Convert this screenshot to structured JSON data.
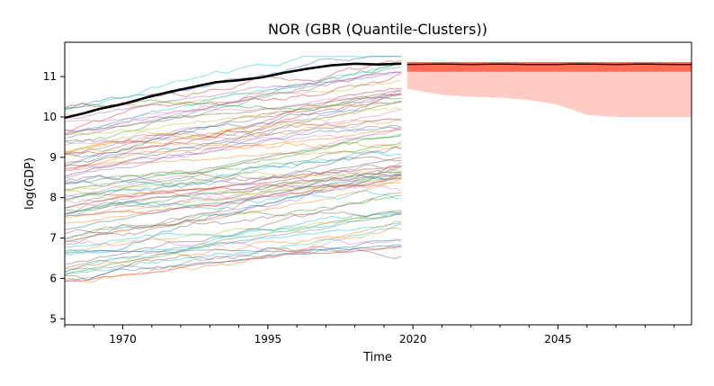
{
  "chart_data": {
    "type": "line",
    "title": "NOR (GBR (Quantile-Clusters))",
    "xlabel": "Time",
    "ylabel": "log(GDP)",
    "xlim": [
      1960,
      2068
    ],
    "ylim": [
      4.85,
      11.85
    ],
    "x_ticks": [
      1970,
      1995,
      2020,
      2045
    ],
    "y_ticks": [
      5,
      6,
      7,
      8,
      9,
      10,
      11
    ],
    "grid": false,
    "legend": "none",
    "highlight_series": {
      "color": "#000000",
      "x": [
        1960,
        1963,
        1966,
        1970,
        1974,
        1978,
        1982,
        1986,
        1990,
        1994,
        1998,
        2002,
        2006,
        2010,
        2014,
        2018
      ],
      "values": [
        9.98,
        10.08,
        10.2,
        10.32,
        10.48,
        10.62,
        10.74,
        10.86,
        10.91,
        10.98,
        11.1,
        11.2,
        11.28,
        11.32,
        11.3,
        11.32
      ]
    },
    "forecast": {
      "x": [
        2019,
        2025,
        2030,
        2035,
        2040,
        2045,
        2047,
        2050,
        2055,
        2060,
        2065,
        2068
      ],
      "median": [
        11.3,
        11.31,
        11.3,
        11.31,
        11.3,
        11.3,
        11.31,
        11.31,
        11.3,
        11.31,
        11.3,
        11.3
      ],
      "inner_lower": [
        11.12,
        11.12,
        11.12,
        11.12,
        11.12,
        11.12,
        11.12,
        11.12,
        11.12,
        11.12,
        11.12,
        11.12
      ],
      "inner_upper": [
        11.36,
        11.36,
        11.36,
        11.36,
        11.36,
        11.36,
        11.36,
        11.36,
        11.36,
        11.36,
        11.36,
        11.36
      ],
      "outer_lower": [
        10.7,
        10.55,
        10.5,
        10.48,
        10.42,
        10.3,
        10.2,
        10.05,
        10.0,
        10.0,
        10.0,
        10.0
      ],
      "outer_upper": [
        11.36,
        11.36,
        11.36,
        11.36,
        11.36,
        11.36,
        11.36,
        11.36,
        11.36,
        11.36,
        11.36,
        11.36
      ],
      "colors": {
        "median": "#000000",
        "inner": "#ff6b55",
        "outer": "#ffccc4"
      }
    },
    "background_series": {
      "x_start": 1960,
      "x_end": 2018,
      "count": 80,
      "start_range": [
        5.85,
        10.3
      ],
      "palette": [
        "#1f77b4",
        "#ff7f0e",
        "#2ca02c",
        "#d62728",
        "#9467bd",
        "#8c564b",
        "#e377c2",
        "#7f7f7f",
        "#bcbd22",
        "#17becf"
      ]
    }
  }
}
